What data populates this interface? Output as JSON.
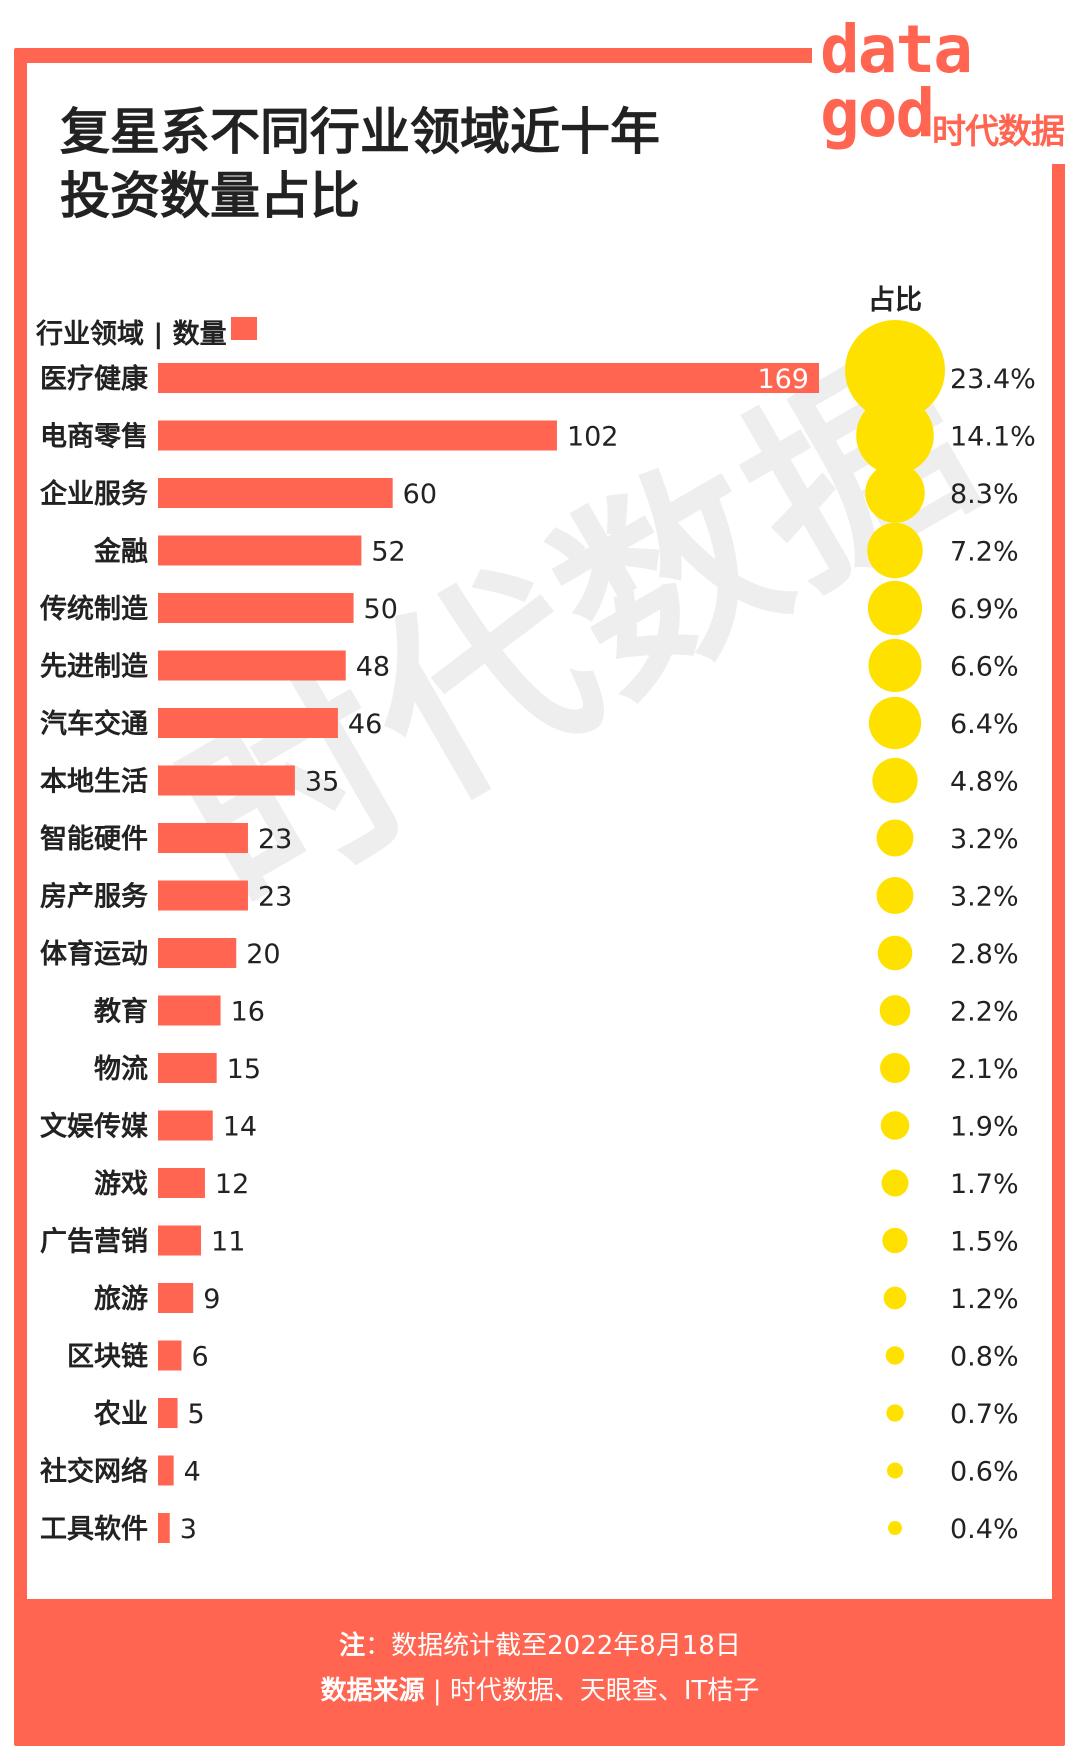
{
  "title": "复星系不同行业领域近十年\n投资数量占比",
  "legend_label": "行业领域 | 数量",
  "ratio_header": "占比",
  "logo": {
    "text": "data\ngod",
    "cn": "时代数据"
  },
  "watermark": "时代数据",
  "footer": {
    "note_label": "注",
    "note_text": "：数据统计截至2022年8月18日",
    "source_label": "数据来源",
    "source_text": " | 时代数据、天眼查、IT桔子"
  },
  "colors": {
    "bar": "#ff6550",
    "bubble": "#ffe100",
    "frame": "#ff6550"
  },
  "chart_data": {
    "type": "bar",
    "orientation": "horizontal",
    "categories": [
      "医疗健康",
      "电商零售",
      "企业服务",
      "金融",
      "传统制造",
      "先进制造",
      "汽车交通",
      "本地生活",
      "智能硬件",
      "房产服务",
      "体育运动",
      "教育",
      "物流",
      "文娱传媒",
      "游戏",
      "广告营销",
      "旅游",
      "区块链",
      "农业",
      "社交网络",
      "工具软件"
    ],
    "values": [
      169,
      102,
      60,
      52,
      50,
      48,
      46,
      35,
      23,
      23,
      20,
      16,
      15,
      14,
      12,
      11,
      9,
      6,
      5,
      4,
      3
    ],
    "shares": [
      "23.4%",
      "14.1%",
      "8.3%",
      "7.2%",
      "6.9%",
      "6.6%",
      "6.4%",
      "4.8%",
      "3.2%",
      "3.2%",
      "2.8%",
      "2.2%",
      "2.1%",
      "1.9%",
      "1.7%",
      "1.5%",
      "1.2%",
      "0.8%",
      "0.7%",
      "0.6%",
      "0.4%"
    ],
    "share_values": [
      23.4,
      14.1,
      8.3,
      7.2,
      6.9,
      6.6,
      6.4,
      4.8,
      3.2,
      3.2,
      2.8,
      2.2,
      2.1,
      1.9,
      1.7,
      1.5,
      1.2,
      0.8,
      0.7,
      0.6,
      0.4
    ],
    "xlim": [
      0,
      169
    ],
    "grid": false
  }
}
